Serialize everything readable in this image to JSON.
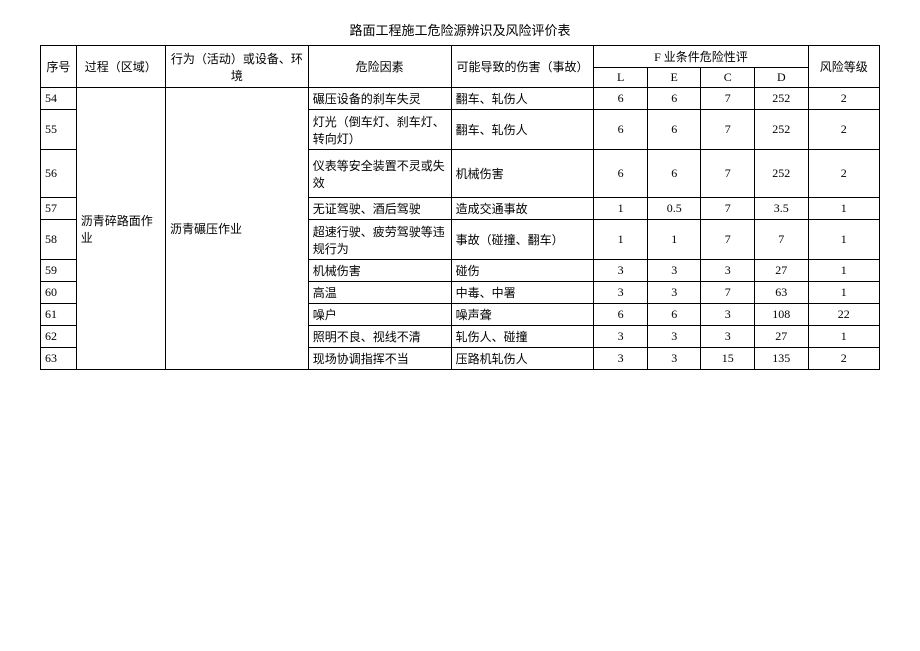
{
  "title": "路面工程施工危险源辨识及风险评价表",
  "headers": {
    "seq": "序号",
    "process": "过程（区域）",
    "activity": "行为（活动）或设备、环境",
    "risk_factor": "危险因素",
    "possible_harm": "可能导致的伤害（事故）",
    "f_group": "F 业条件危险性评",
    "L": "L",
    "E": "E",
    "C": "C",
    "D": "D",
    "level": "风险等级"
  },
  "merged": {
    "process": "沥青碎路面作业",
    "activity": "沥青碾压作业"
  },
  "rows": [
    {
      "seq": "54",
      "risk": "碾压设备的刹车失灵",
      "harm": "翻车、轧伤人",
      "L": "6",
      "E": "6",
      "C": "7",
      "D": "252",
      "level": "2",
      "tall": false
    },
    {
      "seq": "55",
      "risk": "灯光（倒车灯、刹车灯、转向灯）",
      "harm": "翻车、轧伤人",
      "L": "6",
      "E": "6",
      "C": "7",
      "D": "252",
      "level": "2",
      "tall": true
    },
    {
      "seq": "56",
      "risk": "仪表等安全装置不灵或失效",
      "harm": "机械伤害",
      "L": "6",
      "E": "6",
      "C": "7",
      "D": "252",
      "level": "2",
      "tall": true,
      "taller": true
    },
    {
      "seq": "57",
      "risk": "无证驾驶、酒后驾驶",
      "harm": "造成交通事故",
      "L": "1",
      "E": "0.5",
      "C": "7",
      "D": "3.5",
      "level": "1",
      "tall": false
    },
    {
      "seq": "58",
      "risk": "超速行驶、疲劳驾驶等违规行为",
      "harm": "事故（碰撞、翻车）",
      "L": "1",
      "E": "1",
      "C": "7",
      "D": "7",
      "level": "1",
      "tall": true
    },
    {
      "seq": "59",
      "risk": "机械伤害",
      "harm": "碰伤",
      "L": "3",
      "E": "3",
      "C": "3",
      "D": "27",
      "level": "1",
      "tall": false
    },
    {
      "seq": "60",
      "risk": "高温",
      "harm": "中毒、中署",
      "L": "3",
      "E": "3",
      "C": "7",
      "D": "63",
      "level": "1",
      "tall": false
    },
    {
      "seq": "61",
      "risk": "噪户",
      "harm": "噪声聋",
      "L": "6",
      "E": "6",
      "C": "3",
      "D": "108",
      "level": "22",
      "tall": false
    },
    {
      "seq": "62",
      "risk": "照明不良、视线不清",
      "harm": "轧伤人、碰撞",
      "L": "3",
      "E": "3",
      "C": "3",
      "D": "27",
      "level": "1",
      "tall": false
    },
    {
      "seq": "63",
      "risk": "现场协调指挥不当",
      "harm": "压路机轧伤人",
      "L": "3",
      "E": "3",
      "C": "15",
      "D": "135",
      "level": "2",
      "tall": false
    }
  ]
}
